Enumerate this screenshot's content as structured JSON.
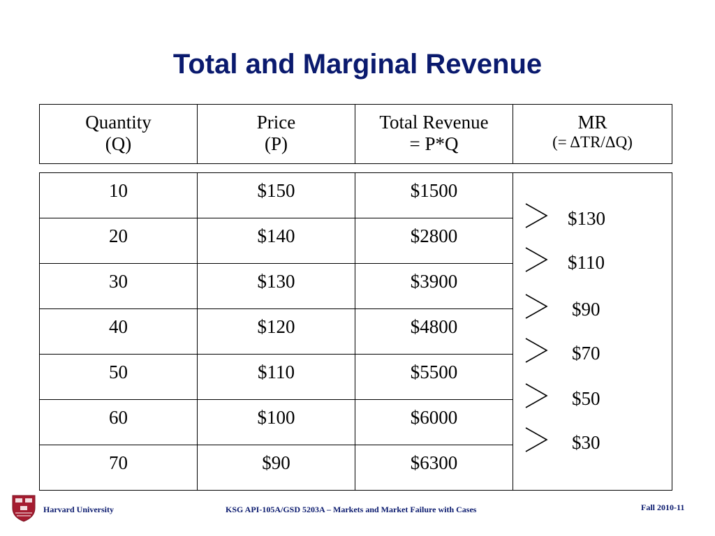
{
  "slide": {
    "title": "Total and Marginal Revenue"
  },
  "header": {
    "quantity": "Quantity",
    "quantity_sub": "(Q)",
    "price": "Price",
    "price_sub": "(P)",
    "total_revenue": "Total Revenue",
    "total_revenue_sub": "= P*Q",
    "mr": "MR",
    "mr_sub": "(= ΔTR/ΔQ)"
  },
  "rows": [
    {
      "q": "10",
      "p": "$150",
      "tr": "$1500"
    },
    {
      "q": "20",
      "p": "$140",
      "tr": "$2800"
    },
    {
      "q": "30",
      "p": "$130",
      "tr": "$3900"
    },
    {
      "q": "40",
      "p": "$120",
      "tr": "$4800"
    },
    {
      "q": "50",
      "p": "$110",
      "tr": "$5500"
    },
    {
      "q": "60",
      "p": "$100",
      "tr": "$6000"
    },
    {
      "q": "70",
      "p": "$90",
      "tr": "$6300"
    }
  ],
  "marginal_revenue": [
    "$130",
    "$110",
    "$90",
    "$70",
    "$50",
    "$30"
  ],
  "footer": {
    "institution": "Harvard University",
    "course": "KSG API-105A/GSD 5203A – Markets and Market Failure with Cases",
    "term": "Fall 2010-11"
  },
  "colors": {
    "title": "#0a1a6e",
    "footer": "#0a1a6e",
    "logo": "#a51c30"
  },
  "icons": {
    "logo": "harvard-shield-icon",
    "mr_bracket": "bracket-icon"
  }
}
